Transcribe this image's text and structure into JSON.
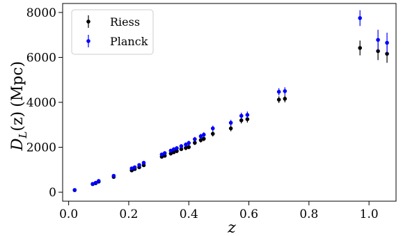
{
  "chart_data": {
    "type": "scatter",
    "xlabel": "z",
    "ylabel": "D_L(z) (Mpc)",
    "ylabel_parts": {
      "main": "D",
      "sub": "L",
      "args": "(z)",
      "units": "(Mpc)"
    },
    "xlim": [
      -0.02,
      1.09
    ],
    "ylim": [
      -400,
      8400
    ],
    "xticks": [
      0.0,
      0.2,
      0.4,
      0.6,
      0.8,
      1.0
    ],
    "xtick_labels": [
      "0.0",
      "0.2",
      "0.4",
      "0.6",
      "0.8",
      "1.0"
    ],
    "yticks": [
      0,
      2000,
      4000,
      6000,
      8000
    ],
    "ytick_labels": [
      "0",
      "2000",
      "4000",
      "6000",
      "8000"
    ],
    "grid": false,
    "legend_position": "top-left",
    "series": [
      {
        "name": "Riess",
        "color": "#000000",
        "points": [
          {
            "x": 0.02,
            "y": 90,
            "err": 20
          },
          {
            "x": 0.08,
            "y": 360,
            "err": 30
          },
          {
            "x": 0.09,
            "y": 400,
            "err": 30
          },
          {
            "x": 0.1,
            "y": 470,
            "err": 40
          },
          {
            "x": 0.15,
            "y": 680,
            "err": 50
          },
          {
            "x": 0.21,
            "y": 970,
            "err": 60
          },
          {
            "x": 0.22,
            "y": 1030,
            "err": 60
          },
          {
            "x": 0.235,
            "y": 1110,
            "err": 70
          },
          {
            "x": 0.25,
            "y": 1200,
            "err": 70
          },
          {
            "x": 0.31,
            "y": 1580,
            "err": 80
          },
          {
            "x": 0.32,
            "y": 1620,
            "err": 80
          },
          {
            "x": 0.34,
            "y": 1720,
            "err": 80
          },
          {
            "x": 0.35,
            "y": 1780,
            "err": 90
          },
          {
            "x": 0.36,
            "y": 1830,
            "err": 90
          },
          {
            "x": 0.375,
            "y": 1920,
            "err": 90
          },
          {
            "x": 0.39,
            "y": 1970,
            "err": 100
          },
          {
            "x": 0.4,
            "y": 2010,
            "err": 100
          },
          {
            "x": 0.42,
            "y": 2200,
            "err": 100
          },
          {
            "x": 0.44,
            "y": 2320,
            "err": 110
          },
          {
            "x": 0.45,
            "y": 2380,
            "err": 110
          },
          {
            "x": 0.48,
            "y": 2600,
            "err": 120
          },
          {
            "x": 0.54,
            "y": 2840,
            "err": 130
          },
          {
            "x": 0.575,
            "y": 3200,
            "err": 140
          },
          {
            "x": 0.595,
            "y": 3250,
            "err": 150
          },
          {
            "x": 0.7,
            "y": 4120,
            "err": 150
          },
          {
            "x": 0.72,
            "y": 4160,
            "err": 160
          },
          {
            "x": 0.97,
            "y": 6420,
            "err": 330
          },
          {
            "x": 1.03,
            "y": 6280,
            "err": 400
          },
          {
            "x": 1.06,
            "y": 6160,
            "err": 400
          }
        ]
      },
      {
        "name": "Planck",
        "color": "#0000ff",
        "points": [
          {
            "x": 0.02,
            "y": 100,
            "err": 20
          },
          {
            "x": 0.08,
            "y": 370,
            "err": 30
          },
          {
            "x": 0.09,
            "y": 420,
            "err": 30
          },
          {
            "x": 0.1,
            "y": 500,
            "err": 40
          },
          {
            "x": 0.15,
            "y": 730,
            "err": 50
          },
          {
            "x": 0.21,
            "y": 1060,
            "err": 60
          },
          {
            "x": 0.22,
            "y": 1110,
            "err": 60
          },
          {
            "x": 0.235,
            "y": 1210,
            "err": 70
          },
          {
            "x": 0.25,
            "y": 1310,
            "err": 70
          },
          {
            "x": 0.31,
            "y": 1680,
            "err": 80
          },
          {
            "x": 0.32,
            "y": 1740,
            "err": 80
          },
          {
            "x": 0.34,
            "y": 1850,
            "err": 80
          },
          {
            "x": 0.35,
            "y": 1910,
            "err": 90
          },
          {
            "x": 0.36,
            "y": 1960,
            "err": 90
          },
          {
            "x": 0.375,
            "y": 2050,
            "err": 90
          },
          {
            "x": 0.39,
            "y": 2120,
            "err": 100
          },
          {
            "x": 0.4,
            "y": 2190,
            "err": 100
          },
          {
            "x": 0.42,
            "y": 2360,
            "err": 100
          },
          {
            "x": 0.44,
            "y": 2490,
            "err": 110
          },
          {
            "x": 0.45,
            "y": 2560,
            "err": 110
          },
          {
            "x": 0.48,
            "y": 2840,
            "err": 120
          },
          {
            "x": 0.54,
            "y": 3090,
            "err": 130
          },
          {
            "x": 0.575,
            "y": 3400,
            "err": 140
          },
          {
            "x": 0.595,
            "y": 3440,
            "err": 150
          },
          {
            "x": 0.7,
            "y": 4470,
            "err": 160
          },
          {
            "x": 0.72,
            "y": 4500,
            "err": 170
          },
          {
            "x": 0.97,
            "y": 7750,
            "err": 350
          },
          {
            "x": 1.03,
            "y": 6780,
            "err": 450
          },
          {
            "x": 1.06,
            "y": 6650,
            "err": 450
          }
        ]
      }
    ]
  }
}
